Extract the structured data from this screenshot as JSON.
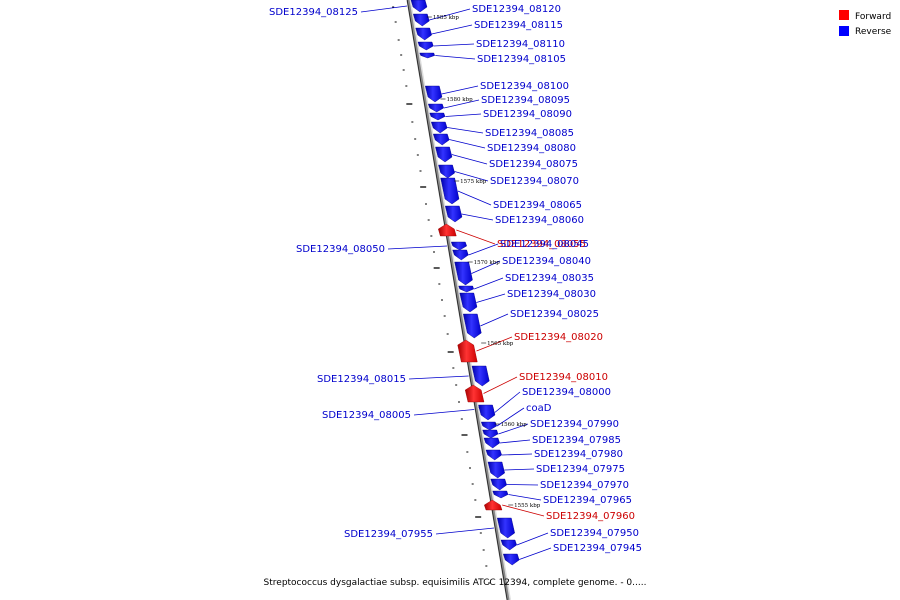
{
  "caption": "Streptococcus dysgalactiae subsp. equisimilis ATCC 12394, complete genome. - 0.....",
  "legend": [
    {
      "label": "Forward",
      "color": "#ff0000"
    },
    {
      "label": "Reverse",
      "color": "#0000ff"
    }
  ],
  "strand_colors": {
    "forward": "#ff0000",
    "reverse": "#0000ff",
    "forward_label": "#cc0000",
    "reverse_label": "#0000cc"
  },
  "ticks": [
    "1585 kbp",
    "1580 kbp",
    "1575 kbp",
    "1570 kbp",
    "1565 kbp",
    "1560 kbp",
    "1555 kbp"
  ],
  "genes": [
    {
      "name": "SDE12394_08125",
      "strand": "reverse"
    },
    {
      "name": "SDE12394_08120",
      "strand": "reverse"
    },
    {
      "name": "SDE12394_08115",
      "strand": "reverse"
    },
    {
      "name": "SDE12394_08110",
      "strand": "reverse"
    },
    {
      "name": "SDE12394_08105",
      "strand": "reverse"
    },
    {
      "name": "SDE12394_08100",
      "strand": "reverse"
    },
    {
      "name": "SDE12394_08095",
      "strand": "reverse"
    },
    {
      "name": "SDE12394_08090",
      "strand": "reverse"
    },
    {
      "name": "SDE12394_08085",
      "strand": "reverse"
    },
    {
      "name": "SDE12394_08080",
      "strand": "reverse"
    },
    {
      "name": "SDE12394_08075",
      "strand": "reverse"
    },
    {
      "name": "SDE12394_08070",
      "strand": "reverse"
    },
    {
      "name": "SDE12394_08065",
      "strand": "reverse"
    },
    {
      "name": "SDE12394_08060",
      "strand": "reverse"
    },
    {
      "name": "SDE12394_08055",
      "strand": "forward"
    },
    {
      "name": "SDE12394_08050",
      "strand": "reverse"
    },
    {
      "name": "SDE12394_08045",
      "strand": "reverse"
    },
    {
      "name": "SDE12394_08040",
      "strand": "reverse"
    },
    {
      "name": "SDE12394_08035",
      "strand": "reverse"
    },
    {
      "name": "SDE12394_08030",
      "strand": "reverse"
    },
    {
      "name": "SDE12394_08025",
      "strand": "reverse"
    },
    {
      "name": "SDE12394_08020",
      "strand": "forward"
    },
    {
      "name": "SDE12394_08015",
      "strand": "reverse"
    },
    {
      "name": "SDE12394_08010",
      "strand": "forward"
    },
    {
      "name": "SDE12394_08005",
      "strand": "reverse"
    },
    {
      "name": "SDE12394_08000",
      "strand": "reverse"
    },
    {
      "name": "coaD",
      "strand": "reverse"
    },
    {
      "name": "SDE12394_07990",
      "strand": "reverse"
    },
    {
      "name": "SDE12394_07985",
      "strand": "reverse"
    },
    {
      "name": "SDE12394_07980",
      "strand": "reverse"
    },
    {
      "name": "SDE12394_07975",
      "strand": "reverse"
    },
    {
      "name": "SDE12394_07970",
      "strand": "reverse"
    },
    {
      "name": "SDE12394_07965",
      "strand": "reverse"
    },
    {
      "name": "SDE12394_07960",
      "strand": "forward"
    },
    {
      "name": "SDE12394_07955",
      "strand": "reverse"
    },
    {
      "name": "SDE12394_07950",
      "strand": "reverse"
    },
    {
      "name": "SDE12394_07945",
      "strand": "reverse"
    }
  ]
}
